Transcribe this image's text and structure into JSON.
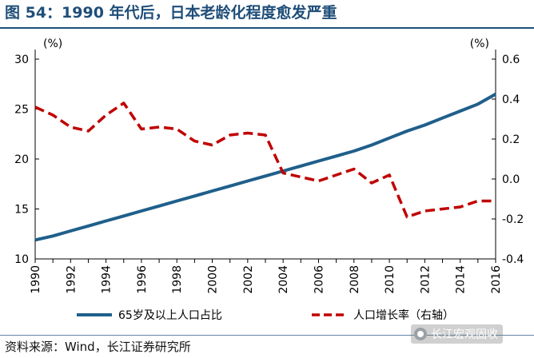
{
  "title": "图 54：1990 年代后，日本老龄化程度愈发严重",
  "source": "资料来源：Wind，长江证券研究所",
  "watermark": "长江宏观固收",
  "colors": {
    "title": "#1f4e79",
    "series_aging": "#1f5f8b",
    "series_growth": "#c00000"
  },
  "chart_data": {
    "type": "line",
    "x": [
      1990,
      1991,
      1992,
      1993,
      1994,
      1995,
      1996,
      1997,
      1998,
      1999,
      2000,
      2001,
      2002,
      2003,
      2004,
      2005,
      2006,
      2007,
      2008,
      2009,
      2010,
      2011,
      2012,
      2013,
      2014,
      2015,
      2016
    ],
    "x_tick_labels": [
      "1990",
      "1992",
      "1994",
      "1996",
      "1998",
      "2000",
      "2002",
      "2004",
      "2006",
      "2008",
      "2010",
      "2012",
      "2014",
      "2016"
    ],
    "left_axis": {
      "unit": "(%)",
      "ylim": [
        10,
        30
      ],
      "ticks": [
        "10",
        "15",
        "20",
        "25",
        "30"
      ]
    },
    "right_axis": {
      "unit": "(%)",
      "ylim": [
        -0.4,
        0.6
      ],
      "ticks": [
        "-0.4",
        "-0.2",
        "0.0",
        "0.2",
        "0.4",
        "0.6"
      ]
    },
    "series": [
      {
        "name": "65岁及以上人口占比",
        "axis": "left",
        "style": "solid",
        "values": [
          11.9,
          12.3,
          12.8,
          13.3,
          13.8,
          14.3,
          14.8,
          15.3,
          15.8,
          16.3,
          16.8,
          17.3,
          17.8,
          18.3,
          18.8,
          19.3,
          19.8,
          20.3,
          20.8,
          21.4,
          22.1,
          22.8,
          23.4,
          24.1,
          24.8,
          25.5,
          26.5
        ]
      },
      {
        "name": "人口增长率（右轴）",
        "axis": "right",
        "style": "dashed",
        "values": [
          0.36,
          0.32,
          0.26,
          0.24,
          0.32,
          0.38,
          0.25,
          0.26,
          0.25,
          0.19,
          0.17,
          0.22,
          0.23,
          0.22,
          0.03,
          0.01,
          -0.01,
          0.02,
          0.05,
          -0.02,
          0.02,
          -0.19,
          -0.16,
          -0.15,
          -0.14,
          -0.11,
          -0.11
        ]
      }
    ],
    "grid": false,
    "legend_position": "bottom"
  }
}
